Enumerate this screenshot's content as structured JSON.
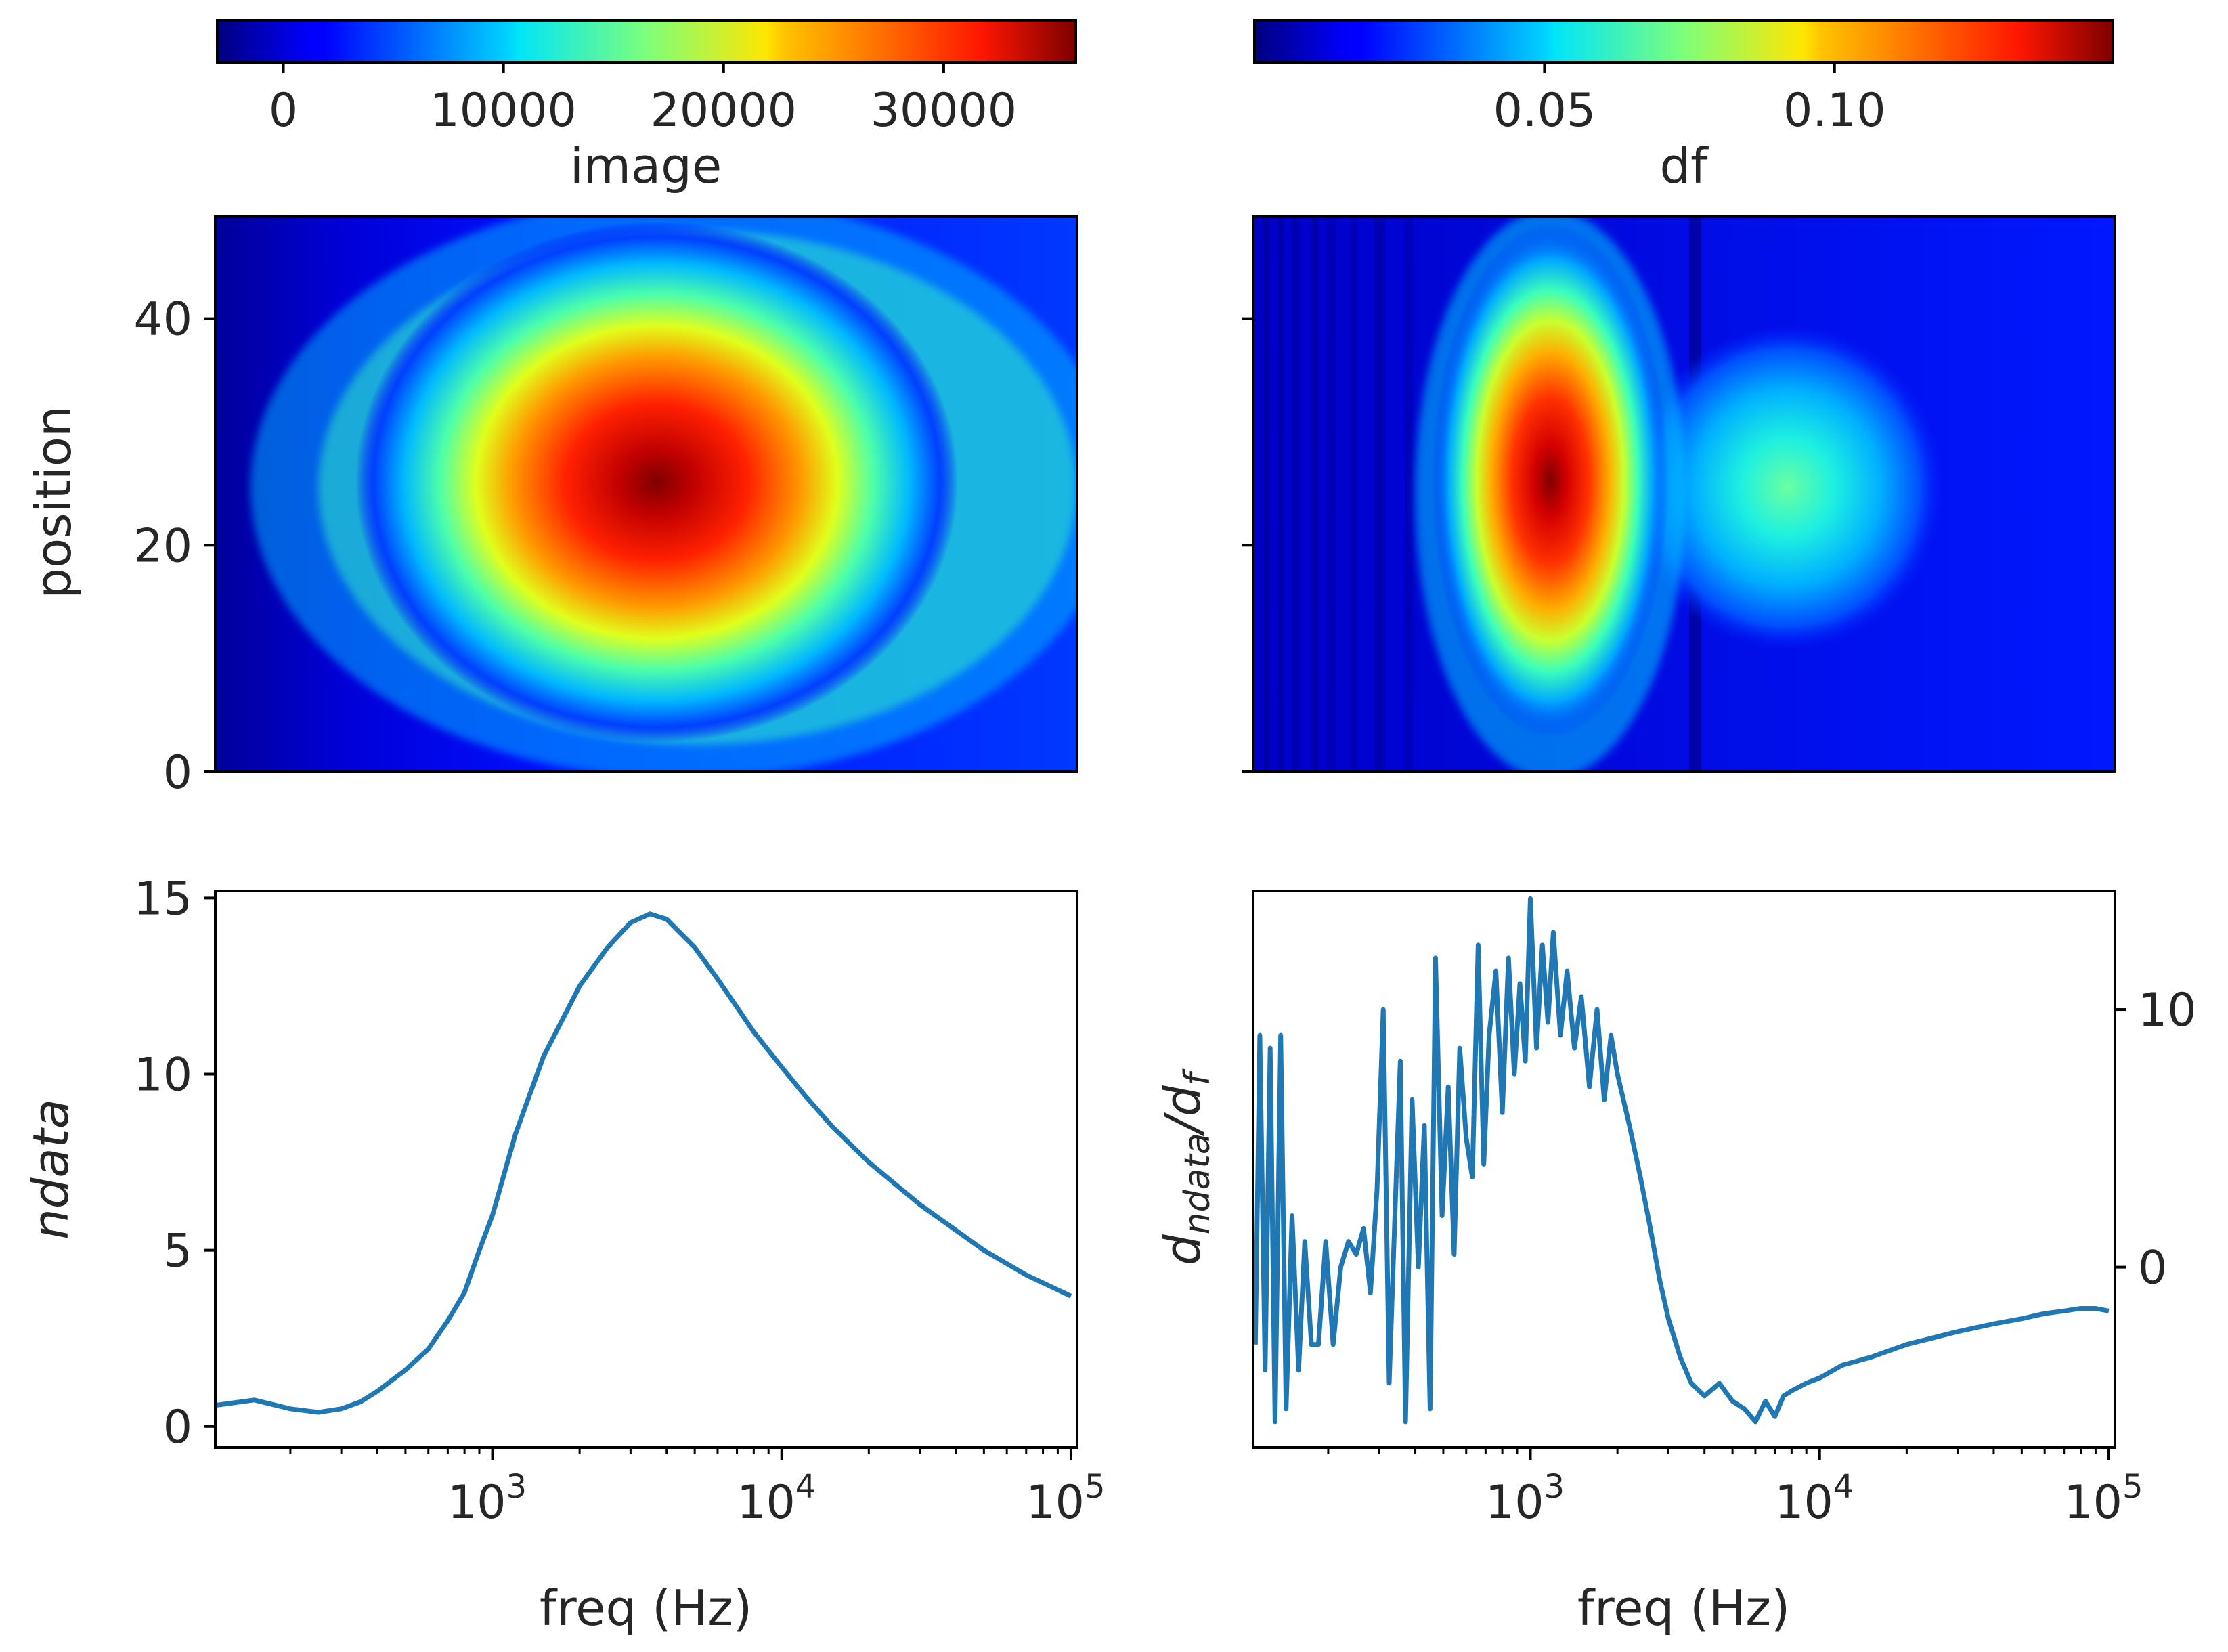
{
  "chart_data": [
    {
      "type": "heatmap",
      "panel": "top-left",
      "title": "image",
      "xlabel": "",
      "ylabel": "position",
      "x_scale": "log",
      "xlim": [
        110,
        105000
      ],
      "ylim": [
        0,
        49
      ],
      "yticks": [
        0,
        20,
        40
      ],
      "colormap": "jet",
      "colorbar": {
        "placement": "top",
        "range": [
          -3000,
          36000
        ],
        "ticks": [
          0,
          10000,
          20000,
          30000
        ],
        "tick_labels": [
          "0",
          "10000",
          "20000",
          "30000"
        ]
      },
      "blobs": [
        {
          "center_freq_hz": 3500,
          "center_position": 25.5,
          "peak_value": 36000
        }
      ]
    },
    {
      "type": "heatmap",
      "panel": "top-right",
      "title": "df",
      "xlabel": "",
      "ylabel": "",
      "x_scale": "log",
      "xlim": [
        110,
        105000
      ],
      "ylim": [
        0,
        49
      ],
      "yticks": [
        0,
        20,
        40
      ],
      "colormap": "jet",
      "colorbar": {
        "placement": "top",
        "range": [
          0.0,
          0.148
        ],
        "ticks": [
          0.05,
          0.1
        ],
        "tick_labels": [
          "0.05",
          "0.10"
        ]
      },
      "blobs": [
        {
          "center_freq_hz": 1150,
          "center_position": 26,
          "peak_value": 0.147
        },
        {
          "center_freq_hz": 8500,
          "center_position": 25,
          "peak_value": 0.062
        }
      ]
    },
    {
      "type": "line",
      "panel": "bottom-left",
      "title": "",
      "xlabel": "freq (Hz)",
      "ylabel": "ndata",
      "x_scale": "log",
      "xlim": [
        110,
        105000
      ],
      "ylim": [
        -0.6,
        15.2
      ],
      "xticks": [
        1000,
        10000,
        100000
      ],
      "xtick_labels": [
        "10",
        "10",
        "10"
      ],
      "xtick_exponents": [
        "3",
        "4",
        "5"
      ],
      "yticks": [
        0,
        5,
        10,
        15
      ],
      "ytick_labels": [
        "0",
        "5",
        "10",
        "15"
      ],
      "series": [
        {
          "name": "ndata",
          "x": [
            110,
            150,
            200,
            250,
            300,
            350,
            400,
            500,
            600,
            700,
            800,
            900,
            1000,
            1200,
            1500,
            2000,
            2500,
            3000,
            3500,
            4000,
            5000,
            6000,
            7000,
            8000,
            10000,
            12000,
            15000,
            20000,
            30000,
            50000,
            70000,
            100000
          ],
          "y": [
            0.6,
            0.75,
            0.5,
            0.4,
            0.5,
            0.7,
            1.0,
            1.6,
            2.2,
            3.0,
            3.8,
            5.0,
            6.0,
            8.3,
            10.5,
            12.5,
            13.6,
            14.3,
            14.55,
            14.4,
            13.6,
            12.7,
            11.9,
            11.2,
            10.2,
            9.4,
            8.5,
            7.5,
            6.3,
            5.0,
            4.3,
            3.7
          ]
        }
      ]
    },
    {
      "type": "line",
      "panel": "bottom-right",
      "title": "",
      "xlabel": "freq (Hz)",
      "ylabel": "d_ndata/d_f",
      "ylabel_main": "d",
      "ylabel_sub1": "ndata",
      "ylabel_mid": "/d",
      "ylabel_sub2": "f",
      "y_axis_side": "right",
      "x_scale": "log",
      "xlim": [
        110,
        105000
      ],
      "ylim": [
        -7.0,
        14.6
      ],
      "xticks": [
        1000,
        10000,
        100000
      ],
      "xtick_labels": [
        "10",
        "10",
        "10"
      ],
      "xtick_exponents": [
        "3",
        "4",
        "5"
      ],
      "yticks": [
        0,
        10
      ],
      "ytick_labels": [
        "0",
        "10"
      ],
      "series": [
        {
          "name": "d_ndata/d_f",
          "x": [
            112,
            116,
            121,
            126,
            131,
            137,
            143,
            150,
            158,
            166,
            175,
            185,
            196,
            208,
            221,
            235,
            250,
            265,
            280,
            295,
            310,
            325,
            340,
            355,
            370,
            390,
            410,
            430,
            450,
            470,
            495,
            520,
            545,
            570,
            600,
            630,
            660,
            690,
            720,
            760,
            800,
            840,
            880,
            920,
            960,
            1000,
            1050,
            1100,
            1150,
            1200,
            1270,
            1340,
            1420,
            1500,
            1600,
            1700,
            1800,
            1900,
            2000,
            2200,
            2400,
            2600,
            2800,
            3000,
            3300,
            3600,
            4000,
            4500,
            5000,
            5500,
            6000,
            6500,
            7000,
            7500,
            8000,
            9000,
            10000,
            12000,
            15000,
            20000,
            30000,
            40000,
            50000,
            60000,
            70000,
            80000,
            90000,
            100000
          ],
          "y": [
            -3.0,
            9.0,
            -4.0,
            8.5,
            -6.0,
            9.0,
            -5.5,
            2.0,
            -4.0,
            1.0,
            -3.0,
            -3.0,
            1.0,
            -3.0,
            0.0,
            1.0,
            0.5,
            1.5,
            -1.0,
            3.0,
            10.0,
            -4.5,
            2.0,
            8.0,
            -6.0,
            6.5,
            0.0,
            5.5,
            -5.5,
            12.0,
            2.0,
            7.0,
            0.5,
            8.5,
            5.0,
            3.5,
            12.5,
            4.0,
            9.0,
            11.5,
            6.0,
            12.0,
            7.5,
            11.0,
            8.0,
            14.3,
            8.5,
            12.5,
            9.5,
            13.0,
            9.0,
            11.5,
            8.5,
            10.5,
            7.0,
            10.0,
            6.5,
            9.0,
            7.5,
            5.5,
            3.5,
            1.5,
            -0.5,
            -2.0,
            -3.5,
            -4.5,
            -5.0,
            -4.5,
            -5.2,
            -5.5,
            -6.0,
            -5.2,
            -5.8,
            -5.0,
            -4.8,
            -4.5,
            -4.3,
            -3.8,
            -3.5,
            -3.0,
            -2.5,
            -2.2,
            -2.0,
            -1.8,
            -1.7,
            -1.6,
            -1.6,
            -1.7
          ]
        }
      ]
    }
  ]
}
